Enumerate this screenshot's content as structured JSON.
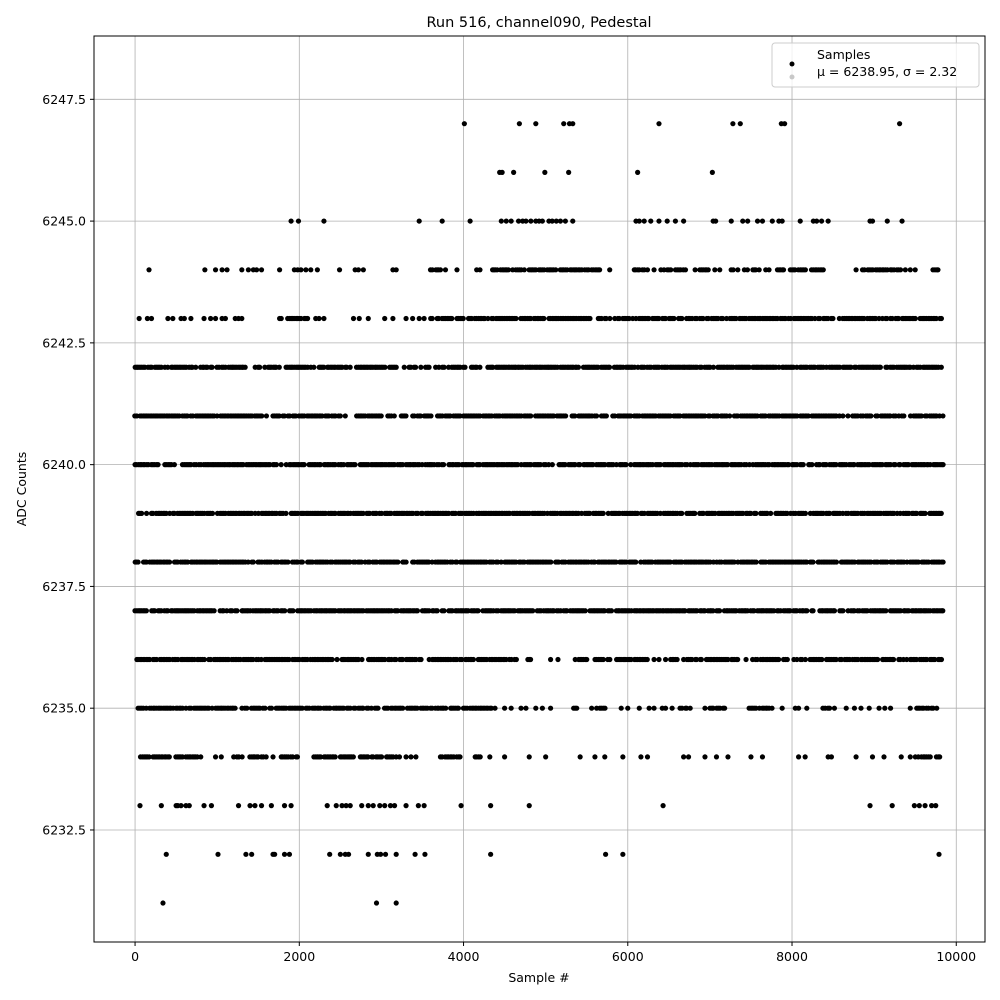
{
  "chart_data": {
    "type": "scatter",
    "title": "Run 516, channel090, Pedestal",
    "xlabel": "Sample #",
    "ylabel": "ADC Counts",
    "xlim": [
      -500,
      10350
    ],
    "ylim": [
      6230.2,
      6248.8
    ],
    "x_ticks": [
      0,
      2000,
      4000,
      6000,
      8000,
      10000
    ],
    "x_tick_labels": [
      "0",
      "2000",
      "4000",
      "6000",
      "8000",
      "10000"
    ],
    "y_ticks": [
      6232.5,
      6235.0,
      6237.5,
      6240.0,
      6242.5,
      6245.0,
      6247.5
    ],
    "y_tick_labels": [
      "6232.5",
      "6235.0",
      "6237.5",
      "6240.0",
      "6242.5",
      "6245.0",
      "6247.5"
    ],
    "grid": true,
    "legend_position": "top-right",
    "legend": [
      {
        "label": "Samples",
        "color": "#000000"
      },
      {
        "label": "μ = 6238.95, σ = 2.32",
        "color": "#c8c8c8"
      }
    ],
    "colors": {
      "points": "#000000",
      "grid": "#b0b0b0",
      "legend_secondary": "#c8c8c8"
    },
    "series": [
      {
        "name": "Samples",
        "x_range": [
          0,
          9840
        ],
        "levels": [
          {
            "y": 6231,
            "x": [
              340,
              2940,
              3180
            ]
          },
          {
            "y": 6232,
            "x": [
              380,
              1010,
              1350,
              1420,
              1680,
              1700,
              1820,
              1880,
              2370,
              2500,
              2560,
              2600,
              2840,
              2950,
              2990,
              3050,
              3180,
              3410,
              3530,
              4330,
              5730,
              5940,
              9790
            ]
          },
          {
            "y": 6233,
            "x": [
              60,
              320,
              500,
              520,
              560,
              620,
              660,
              840,
              930,
              1260,
              1400,
              1460,
              1540,
              1660,
              1820,
              1900,
              2340,
              2450,
              2520,
              2570,
              2620,
              2760,
              2840,
              2900,
              2980,
              3040,
              3110,
              3160,
              3300,
              3450,
              3520,
              3970,
              4330,
              4800,
              6430,
              8950,
              9220,
              9490,
              9550,
              9620,
              9700,
              9750
            ]
          },
          {
            "y": 6234,
            "x": [
              [
                70,
                180
              ],
              [
                220,
                420
              ],
              [
                500,
                760
              ],
              800,
              980,
              1050,
              [
                1200,
                1300
              ],
              [
                1360,
                1600
              ],
              1680,
              [
                1780,
                1980
              ],
              [
                2160,
                2440
              ],
              [
                2480,
                2660
              ],
              [
                2700,
                2900
              ],
              [
                2940,
                3180
              ],
              3220,
              3300,
              3360,
              3420,
              [
                3720,
                3960
              ],
              [
                4140,
                4200
              ],
              4320,
              4500,
              4800,
              5000,
              5420,
              5600,
              5720,
              5940,
              6160,
              6240,
              6680,
              6740,
              6940,
              7080,
              7220,
              7500,
              7640,
              8080,
              8160,
              8440,
              8480,
              8780,
              8980,
              9120,
              9330,
              9440,
              [
                9500,
                9800
              ]
            ]
          },
          {
            "y": 6235,
            "x": [
              [
                40,
                2960
              ],
              [
                3000,
                3480
              ],
              [
                3500,
                4380
              ],
              4500,
              4580,
              4700,
              4760,
              4880,
              4960,
              5060,
              [
                5340,
                5460
              ],
              5560,
              [
                5620,
                5720
              ],
              5920,
              6000,
              6140,
              6260,
              6320,
              6420,
              6460,
              6540,
              [
                6640,
                6760
              ],
              6940,
              [
                7000,
                7200
              ],
              [
                7480,
                7600
              ],
              [
                7640,
                7780
              ],
              7880,
              8040,
              8080,
              8180,
              [
                8380,
                8540
              ],
              8660,
              8760,
              8840,
              8940,
              9060,
              9130,
              9200,
              9440,
              [
                9520,
                9760
              ]
            ]
          },
          {
            "y": 6236,
            "x": [
              [
                20,
                2760
              ],
              [
                2820,
                3500
              ],
              [
                3560,
                4660
              ],
              [
                4760,
                4820
              ],
              5060,
              5150,
              5360,
              [
                5400,
                5520
              ],
              [
                5580,
                5780
              ],
              [
                5840,
                6040
              ],
              [
                6080,
                6240
              ],
              6320,
              6380,
              6460,
              [
                6520,
                6600
              ],
              6680,
              [
                6720,
                6900
              ],
              [
                6940,
                7220
              ],
              [
                7260,
                7380
              ],
              7440,
              7520,
              [
                7560,
                7700
              ],
              [
                7720,
                7940
              ],
              [
                8000,
                8160
              ],
              [
                8220,
                8380
              ],
              [
                8420,
                8540
              ],
              [
                8580,
                8800
              ],
              [
                8840,
                9060
              ],
              [
                9100,
                9240
              ],
              [
                9300,
                9840
              ]
            ]
          },
          {
            "y": 6237,
            "x": [
              [
                0,
                4940
              ],
              [
                4980,
                5100
              ],
              [
                5120,
                9840
              ]
            ]
          },
          {
            "y": 6238,
            "x": [
              [
                0,
                9840
              ]
            ]
          },
          {
            "y": 6239,
            "x": [
              [
                0,
                9840
              ]
            ]
          },
          {
            "y": 6240,
            "x": [
              [
                0,
                9840
              ]
            ]
          },
          {
            "y": 6241,
            "x": [
              [
                0,
                2500
              ],
              2560,
              [
                2700,
                3000
              ],
              [
                3080,
                3600
              ],
              [
                3660,
                9840
              ]
            ]
          },
          {
            "y": 6242,
            "x": [
              [
                0,
                1360
              ],
              [
                1460,
                1760
              ],
              [
                1840,
                2660
              ],
              [
                2700,
                3180
              ],
              [
                3260,
                3600
              ],
              [
                3660,
                4020
              ],
              [
                4100,
                4200
              ],
              [
                4300,
                5780
              ],
              [
                5840,
                9840
              ]
            ]
          },
          {
            "y": 6243,
            "x": [
              50,
              150,
              200,
              400,
              460,
              560,
              600,
              680,
              840,
              920,
              980,
              1060,
              1100,
              1220,
              1260,
              1300,
              1760,
              1780,
              [
                1860,
                2100
              ],
              2200,
              2240,
              2300,
              2660,
              2730,
              2840,
              3040,
              3140,
              3300,
              3380,
              3460,
              3520,
              [
                3600,
                3700
              ],
              [
                3740,
                4260
              ],
              [
                4300,
                4780
              ],
              [
                4800,
                5540
              ],
              [
                5640,
                5780
              ],
              [
                5840,
                9160
              ],
              [
                9200,
                9820
              ]
            ]
          },
          {
            "y": 6244,
            "x": [
              170,
              850,
              980,
              1060,
              1120,
              1300,
              1380,
              1440,
              1480,
              1540,
              1760,
              1940,
              1980,
              2020,
              2080,
              2140,
              2220,
              2490,
              2680,
              2720,
              2780,
              3140,
              3180,
              [
                3600,
                3720
              ],
              3780,
              3920,
              4160,
              4200,
              [
                4350,
                4560
              ],
              [
                4600,
                4700
              ],
              4740,
              [
                4800,
                5140
              ],
              [
                5180,
                5660
              ],
              5780,
              [
                6080,
                6200
              ],
              6240,
              6320,
              [
                6400,
                6520
              ],
              [
                6580,
                6700
              ],
              6820,
              [
                6880,
                6980
              ],
              7060,
              7120,
              [
                7220,
                7280
              ],
              7340,
              7420,
              [
                7460,
                7560
              ],
              7600,
              7680,
              7720,
              [
                7820,
                7900
              ],
              [
                7980,
                8040
              ],
              [
                8080,
                8180
              ],
              [
                8220,
                8380
              ],
              8780,
              [
                8860,
                9160
              ],
              [
                9200,
                9320
              ],
              9380,
              9440,
              9500,
              [
                9720,
                9780
              ]
            ]
          },
          {
            "y": 6245,
            "x": [
              1900,
              1990,
              2300,
              3460,
              3740,
              4080,
              4460,
              4520,
              4580,
              4670,
              4720,
              4760,
              4820,
              4880,
              4920,
              4960,
              5040,
              5080,
              5130,
              5180,
              5240,
              5330,
              6100,
              6140,
              6200,
              6280,
              6380,
              6480,
              6580,
              6680,
              7040,
              7070,
              7260,
              7400,
              7460,
              7580,
              7640,
              7760,
              7840,
              7880,
              8100,
              8260,
              8300,
              8360,
              8440,
              8950,
              8980,
              9160,
              9340
            ]
          },
          {
            "y": 6246,
            "x": [
              4440,
              4470,
              4610,
              4990,
              5280,
              6120,
              7030
            ]
          },
          {
            "y": 6247,
            "x": [
              4010,
              4680,
              4880,
              5220,
              5290,
              5330,
              6380,
              7280,
              7370,
              7870,
              7910,
              9310
            ]
          }
        ]
      }
    ]
  }
}
